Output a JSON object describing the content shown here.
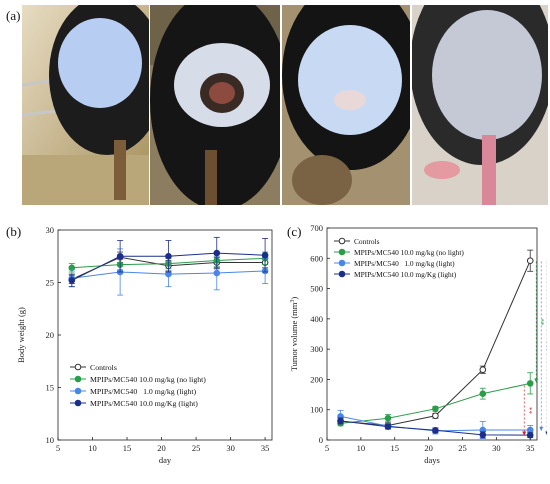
{
  "panels": {
    "a": "(a)",
    "b": "(b)",
    "c": "(c)"
  },
  "photos": [
    {
      "name": "mouse-photo-1",
      "icon": "mouse-lesion-photo",
      "bg": "#bfae86"
    },
    {
      "name": "mouse-photo-2",
      "icon": "mouse-tumor-photo",
      "bg": "#8d7d60"
    },
    {
      "name": "mouse-photo-3",
      "icon": "mouse-treated-photo",
      "bg": "#a49170"
    },
    {
      "name": "mouse-photo-4",
      "icon": "mouse-healed-photo",
      "bg": "#c9c0b4"
    }
  ],
  "chart_data": [
    {
      "type": "line",
      "xlabel": "day",
      "ylabel": "Body weight (g)",
      "xlim": [
        5,
        36
      ],
      "ylim": [
        10,
        30
      ],
      "xticks": [
        5,
        10,
        15,
        20,
        25,
        30,
        35
      ],
      "yticks": [
        10,
        15,
        20,
        25,
        30
      ],
      "legend_position": "lower-center",
      "series": [
        {
          "name": "Controls",
          "color": "#333333",
          "marker": "open-circle",
          "x": [
            7,
            14,
            21,
            28,
            35
          ],
          "y": [
            25.3,
            27.4,
            26.6,
            26.9,
            26.9
          ],
          "err": [
            0.4,
            0.5,
            0.5,
            0.5,
            0.5
          ]
        },
        {
          "name": "MPIPs/MC540 10.0 mg/kg (no light)",
          "color": "#2a9d4a",
          "marker": "filled-circle",
          "x": [
            7,
            14,
            21,
            28,
            35
          ],
          "y": [
            26.4,
            26.7,
            26.8,
            27.1,
            27.3
          ],
          "err": [
            0.4,
            0.5,
            0.5,
            0.6,
            0.6
          ]
        },
        {
          "name": "MPIPs/MC540   1.0 mg/kg (light)",
          "color": "#4a86e8",
          "marker": "filled-circle",
          "x": [
            7,
            14,
            21,
            28,
            35
          ],
          "y": [
            25.4,
            26.0,
            25.8,
            25.9,
            26.1
          ],
          "err": [
            0.8,
            2.2,
            1.2,
            1.6,
            1.2
          ]
        },
        {
          "name": "MPIPs/MC540 10.0 mg/Kg (light)",
          "color": "#1a2f8a",
          "marker": "filled-circle",
          "x": [
            7,
            14,
            21,
            28,
            35
          ],
          "y": [
            25.2,
            27.5,
            27.5,
            27.8,
            27.6
          ],
          "err": [
            0.6,
            1.5,
            1.5,
            1.5,
            1.6
          ]
        }
      ]
    },
    {
      "type": "line",
      "xlabel": "days",
      "ylabel": "Tumor volume (mm",
      "ylabel_sup": "3",
      "ylabel_end": ")",
      "xlim": [
        5,
        36
      ],
      "ylim": [
        0,
        700
      ],
      "xticks": [
        5,
        10,
        15,
        20,
        25,
        30,
        35
      ],
      "yticks": [
        0,
        100,
        200,
        300,
        400,
        500,
        600,
        700
      ],
      "legend_position": "top-left",
      "series": [
        {
          "name": "Controls",
          "color": "#333333",
          "marker": "open-circle",
          "x": [
            7,
            14,
            21,
            28,
            35
          ],
          "y": [
            62,
            48,
            80,
            232,
            592
          ],
          "err": [
            8,
            8,
            8,
            12,
            35
          ]
        },
        {
          "name": "MPIPs/MC540 10.0 mg/kg (no light)",
          "color": "#2a9d4a",
          "marker": "filled-circle",
          "x": [
            7,
            14,
            21,
            28,
            35
          ],
          "y": [
            55,
            72,
            103,
            153,
            187
          ],
          "err": [
            8,
            12,
            8,
            18,
            35
          ]
        },
        {
          "name": "MPIPs/MC540   1.0 mg/kg (light)",
          "color": "#4a86e8",
          "marker": "filled-circle",
          "x": [
            7,
            14,
            21,
            28,
            35
          ],
          "y": [
            78,
            46,
            30,
            33,
            33
          ],
          "err": [
            20,
            8,
            10,
            28,
            15
          ]
        },
        {
          "name": "MPIPs/MC540 10.0 mg/Kg (light)",
          "color": "#1a2f8a",
          "marker": "filled-circle",
          "x": [
            7,
            14,
            21,
            28,
            35
          ],
          "y": [
            63,
            44,
            32,
            17,
            16
          ],
          "err": [
            10,
            8,
            8,
            10,
            8
          ]
        }
      ],
      "significance": [
        {
          "label": "**",
          "color": "#2a9d4a",
          "from": 590,
          "to": 190,
          "dx": 6
        },
        {
          "label": "***",
          "color": "#4a86e8",
          "from": 590,
          "to": 30,
          "dx": 11
        },
        {
          "label": "***",
          "color": "#1a2f8a",
          "from": 590,
          "to": 15,
          "dx": 17
        },
        {
          "label": "**",
          "color": "#cc2222",
          "from": 180,
          "to": 15,
          "dx": -6
        }
      ]
    }
  ]
}
